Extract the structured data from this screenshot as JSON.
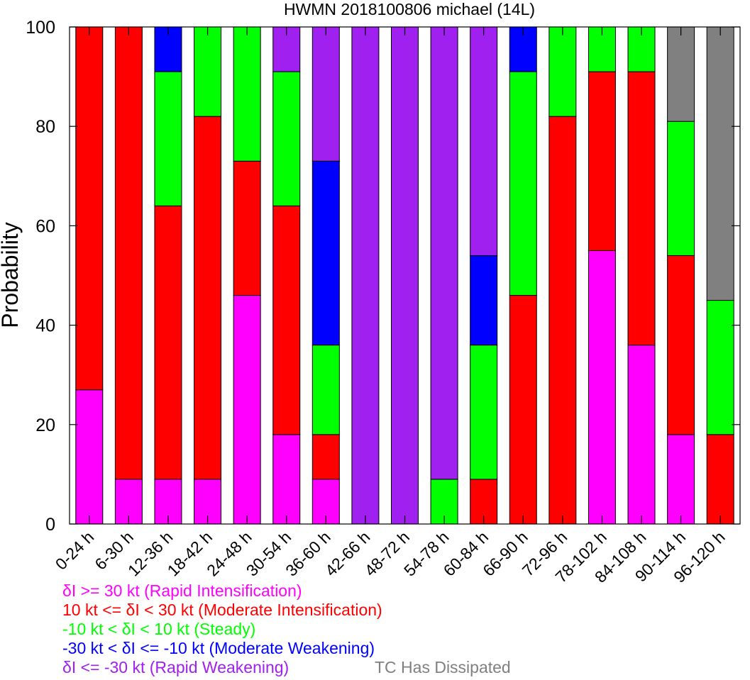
{
  "chart_data": {
    "type": "bar",
    "stacked": true,
    "title": "HWMN 2018100806 michael (14L)",
    "ylabel": "Probability",
    "xlabel": "",
    "ylim": [
      0,
      100
    ],
    "yticks": [
      0,
      20,
      40,
      60,
      80,
      100
    ],
    "grid": false,
    "categories": [
      "0-24 h",
      "6-30 h",
      "12-36 h",
      "18-42 h",
      "24-48 h",
      "30-54 h",
      "36-60 h",
      "42-66 h",
      "48-72 h",
      "54-78 h",
      "60-84 h",
      "66-90 h",
      "72-96 h",
      "78-102 h",
      "84-108 h",
      "90-114 h",
      "96-120 h"
    ],
    "series": [
      {
        "name": "δI >= 30 kt (Rapid Intensification)",
        "color": "#ff00ff",
        "values": [
          27,
          9,
          9,
          9,
          46,
          18,
          9,
          0,
          0,
          0,
          0,
          0,
          0,
          55,
          36,
          18,
          0
        ]
      },
      {
        "name": "10 kt <= δI < 30 kt (Moderate Intensification)",
        "color": "#ff0000",
        "values": [
          73,
          91,
          55,
          73,
          27,
          46,
          9,
          0,
          0,
          0,
          9,
          46,
          82,
          36,
          55,
          36,
          18
        ]
      },
      {
        "name": "-10 kt < δI < 10 kt (Steady)",
        "color": "#00ff00",
        "values": [
          0,
          0,
          27,
          18,
          27,
          27,
          18,
          0,
          0,
          9,
          27,
          45,
          18,
          9,
          9,
          27,
          27
        ]
      },
      {
        "name": "-30 kt < δI <= -10 kt (Moderate Weakening)",
        "color": "#0000ff",
        "values": [
          0,
          0,
          9,
          0,
          0,
          0,
          37,
          0,
          0,
          0,
          18,
          9,
          0,
          0,
          0,
          0,
          0
        ]
      },
      {
        "name": "δI <= -30 kt (Rapid Weakening)",
        "color": "#a020f0",
        "values": [
          0,
          0,
          0,
          0,
          0,
          9,
          27,
          100,
          100,
          91,
          46,
          0,
          0,
          0,
          0,
          0,
          0
        ]
      },
      {
        "name": "TC Has Dissipated",
        "color": "#808080",
        "values": [
          0,
          0,
          0,
          0,
          0,
          0,
          0,
          0,
          0,
          0,
          0,
          0,
          0,
          0,
          0,
          19,
          55
        ]
      }
    ],
    "legend_placement": "bottom-left"
  },
  "legend": [
    {
      "prefix": "δ",
      "text": "I >= 30 kt (Rapid Intensification)",
      "color": "#ff00ff"
    },
    {
      "prefix": "10 kt <= δ",
      "text": "I < 30 kt (Moderate Intensification)",
      "color": "#ff0000"
    },
    {
      "prefix": "-10 kt < δ",
      "text": "I < 10 kt (Steady)",
      "color": "#00ff00"
    },
    {
      "prefix": "-30 kt < δ",
      "text": "I <= -10 kt (Moderate Weakening)",
      "color": "#0000ff"
    },
    {
      "prefix": "δ",
      "text": "I <= -30 kt (Rapid Weakening)",
      "color": "#a020f0"
    },
    {
      "prefix": "",
      "text": "TC Has Dissipated",
      "color": "#808080"
    }
  ]
}
